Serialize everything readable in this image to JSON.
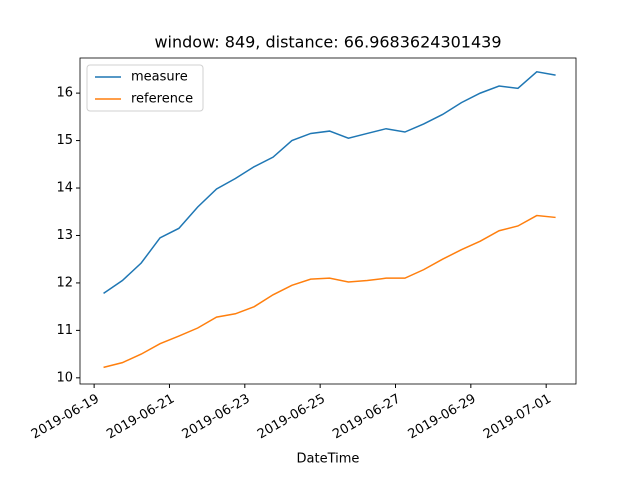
{
  "chart_data": {
    "type": "line",
    "title": "window: 849, distance: 66.9683624301439",
    "x_label": "DateTime",
    "x": [
      "2019-06-19 06:00",
      "2019-06-19 18:00",
      "2019-06-20 06:00",
      "2019-06-20 18:00",
      "2019-06-21 06:00",
      "2019-06-21 18:00",
      "2019-06-22 06:00",
      "2019-06-22 18:00",
      "2019-06-23 06:00",
      "2019-06-23 18:00",
      "2019-06-24 06:00",
      "2019-06-24 18:00",
      "2019-06-25 06:00",
      "2019-06-25 18:00",
      "2019-06-26 06:00",
      "2019-06-26 18:00",
      "2019-06-27 06:00",
      "2019-06-27 18:00",
      "2019-06-28 06:00",
      "2019-06-28 18:00",
      "2019-06-29 06:00",
      "2019-06-29 18:00",
      "2019-06-30 06:00",
      "2019-06-30 18:00",
      "2019-07-01 06:00"
    ],
    "series": [
      {
        "name": "measure",
        "color": "#1f77b4",
        "values": [
          11.78,
          12.05,
          12.42,
          12.95,
          13.15,
          13.6,
          13.98,
          14.2,
          14.45,
          14.65,
          15.0,
          15.15,
          15.2,
          15.05,
          15.15,
          15.25,
          15.18,
          15.35,
          15.55,
          15.8,
          16.0,
          16.15,
          16.1,
          16.45,
          16.38
        ]
      },
      {
        "name": "reference",
        "color": "#ff7f0e",
        "values": [
          10.22,
          10.32,
          10.5,
          10.72,
          10.88,
          11.05,
          11.28,
          11.35,
          11.5,
          11.75,
          11.95,
          12.08,
          12.1,
          12.02,
          12.05,
          12.1,
          12.1,
          12.28,
          12.5,
          12.7,
          12.88,
          13.1,
          13.2,
          13.42,
          13.38
        ]
      }
    ],
    "xlim": [
      "2019-06-18 15:00",
      "2019-07-01 19:00"
    ],
    "xticks": [
      "2019-06-19",
      "2019-06-21",
      "2019-06-23",
      "2019-06-25",
      "2019-06-27",
      "2019-06-29",
      "2019-07-01"
    ],
    "ylim": [
      9.87,
      16.74
    ],
    "yticks": [
      10,
      11,
      12,
      13,
      14,
      15,
      16
    ],
    "legend": "upper-left"
  }
}
